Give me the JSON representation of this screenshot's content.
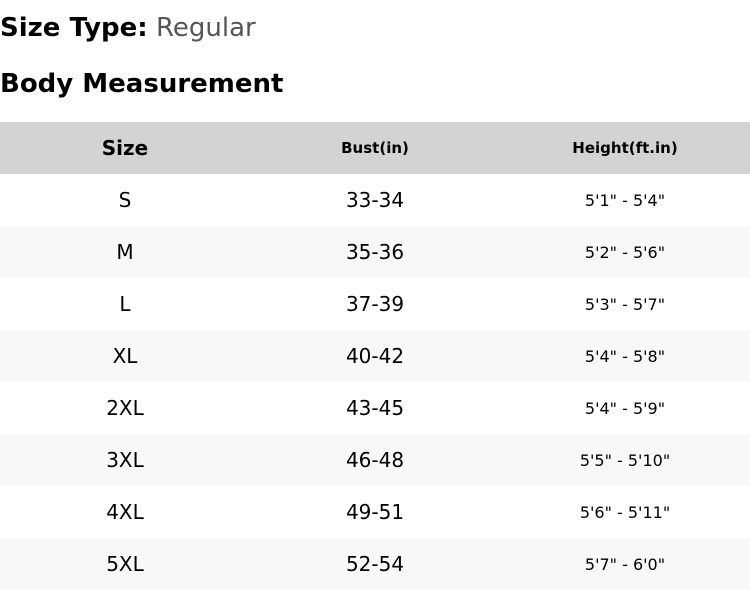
{
  "size_type": {
    "label": "Size Type:",
    "value": "Regular"
  },
  "heading": "Body Measurement",
  "table": {
    "headers": [
      "Size",
      "Bust(in)",
      "Height(ft.in)"
    ],
    "rows": [
      [
        "S",
        "33-34",
        "5'1\" - 5'4\""
      ],
      [
        "M",
        "35-36",
        "5'2\" - 5'6\""
      ],
      [
        "L",
        "37-39",
        "5'3\" - 5'7\""
      ],
      [
        "XL",
        "40-42",
        "5'4\" - 5'8\""
      ],
      [
        "2XL",
        "43-45",
        "5'4\" - 5'9\""
      ],
      [
        "3XL",
        "46-48",
        "5'5\" - 5'10\""
      ],
      [
        "4XL",
        "49-51",
        "5'6\" - 5'11\""
      ],
      [
        "5XL",
        "52-54",
        "5'7\" - 6'0\""
      ]
    ]
  }
}
